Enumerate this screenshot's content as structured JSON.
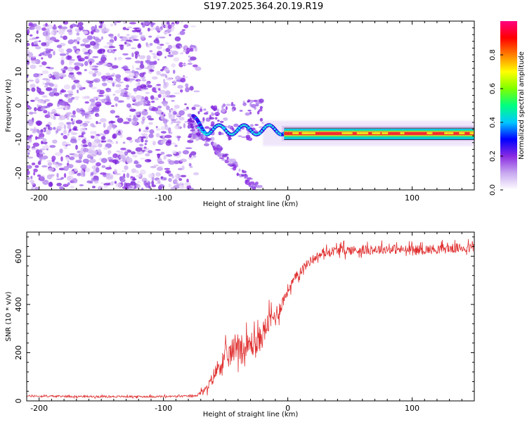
{
  "title": "S197.2025.364.20.19.R19",
  "chart_data": [
    {
      "type": "heatmap",
      "title": "S197.2025.364.20.19.R19",
      "xlabel": "Height of straight line (km)",
      "ylabel": "Frequency (Hz)",
      "xlim": [
        -210,
        150
      ],
      "ylim": [
        -25,
        25
      ],
      "xticks": [
        -200,
        -100,
        0,
        100
      ],
      "yticks": [
        -20,
        -10,
        0,
        10,
        20
      ],
      "colorbar": {
        "label": "Normalized spectral amplitude",
        "range": [
          0,
          1
        ],
        "ticks": [
          "0.0",
          "0.2",
          "0.4",
          "0.6",
          "0.8"
        ],
        "colormap": [
          "#ffffff",
          "#c8a8f0",
          "#8a2be2",
          "#0000ff",
          "#00c8ff",
          "#00ff80",
          "#80ff00",
          "#ffff00",
          "#ff8000",
          "#ff0000",
          "#ff0080"
        ]
      },
      "signal_track": {
        "description_points_x": [
          -75,
          -60,
          -40,
          -20,
          0,
          10,
          50,
          100,
          150
        ],
        "frequency_hz": [
          -5,
          -7,
          -8,
          -7,
          -7.5,
          -8.3,
          -8.3,
          -7.8,
          -7.8
        ],
        "amplitude": [
          0.3,
          0.35,
          0.3,
          0.45,
          0.9,
          1.0,
          0.95,
          0.95,
          0.95
        ]
      }
    },
    {
      "type": "line",
      "xlabel": "Height of straight line (km)",
      "ylabel": "SNR (10 * v/v)",
      "xlim": [
        -210,
        150
      ],
      "ylim": [
        0,
        700
      ],
      "xticks": [
        -200,
        -100,
        0,
        100
      ],
      "yticks": [
        0,
        200,
        400,
        600
      ],
      "series": [
        {
          "name": "SNR",
          "color": "#e03030",
          "x": [
            -210,
            -150,
            -100,
            -75,
            -65,
            -55,
            -45,
            -40,
            -35,
            -30,
            -25,
            -20,
            -15,
            -10,
            -5,
            0,
            10,
            20,
            30,
            40,
            60,
            80,
            100,
            120,
            150
          ],
          "mean": [
            20,
            18,
            18,
            20,
            50,
            150,
            200,
            250,
            200,
            240,
            230,
            280,
            330,
            350,
            400,
            460,
            540,
            590,
            615,
            625,
            625,
            630,
            625,
            630,
            635
          ],
          "spread": [
            8,
            8,
            8,
            8,
            30,
            90,
            110,
            130,
            120,
            110,
            110,
            110,
            90,
            90,
            60,
            50,
            40,
            35,
            35,
            40,
            40,
            40,
            40,
            40,
            40
          ]
        }
      ]
    }
  ]
}
